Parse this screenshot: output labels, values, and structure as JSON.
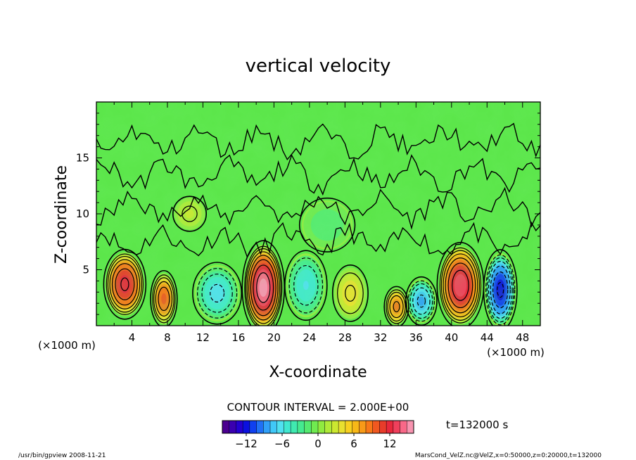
{
  "chart_data": {
    "type": "heatmap",
    "title": "vertical velocity",
    "xlabel": "X-coordinate",
    "ylabel": "Z-coordinate",
    "x_unit": "(×1000 m)",
    "y_unit": "(×1000 m)",
    "xlim": [
      0,
      50
    ],
    "ylim": [
      0,
      20
    ],
    "x_ticks": [
      4,
      8,
      12,
      16,
      20,
      24,
      28,
      32,
      36,
      40,
      44,
      48
    ],
    "y_ticks": [
      5,
      10,
      15
    ],
    "x_tick_labels": [
      "4",
      "8",
      "12",
      "16",
      "20",
      "24",
      "28",
      "32",
      "36",
      "40",
      "44",
      "48"
    ],
    "y_tick_labels": [
      "5",
      "10",
      "15"
    ],
    "contour_interval_text": "CONTOUR INTERVAL = 2.000E+00",
    "contour_interval": 2.0,
    "time_label": "t=132000 s",
    "colorbar": {
      "range": [
        -16,
        16
      ],
      "ticks": [
        -12,
        -6,
        0,
        6,
        12
      ],
      "tick_labels": [
        "−12",
        "−6",
        "0",
        "6",
        "12"
      ],
      "colors": [
        "#4b0090",
        "#3a00b0",
        "#2400d0",
        "#0b10e0",
        "#1040f0",
        "#2070f5",
        "#30a0f8",
        "#40c8f8",
        "#50e0f0",
        "#40e8d0",
        "#40eab0",
        "#45ea90",
        "#55ea70",
        "#70ea50",
        "#90ea40",
        "#b0ea38",
        "#cce830",
        "#e8e030",
        "#f8d020",
        "#f8b818",
        "#f89a18",
        "#f87818",
        "#f05820",
        "#e83c2a",
        "#e8283c",
        "#f0405c",
        "#f86888",
        "#f894b0"
      ]
    },
    "cells": [
      {
        "x": 3.2,
        "z": 3.7,
        "w": 0.8,
        "rx": 1.9,
        "rz": 2.6
      },
      {
        "x": 7.6,
        "z": 2.4,
        "w": 0.62,
        "rx": 1.2,
        "rz": 2.1
      },
      {
        "x": 13.6,
        "z": 2.9,
        "w": -0.42,
        "rx": 2.2,
        "rz": 2.3
      },
      {
        "x": 18.8,
        "z": 3.4,
        "w": 1.0,
        "rx": 1.9,
        "rz": 3.5
      },
      {
        "x": 23.6,
        "z": 3.6,
        "w": -0.38,
        "rx": 1.9,
        "rz": 2.6
      },
      {
        "x": 28.6,
        "z": 2.9,
        "w": 0.28,
        "rx": 1.6,
        "rz": 2.1
      },
      {
        "x": 33.8,
        "z": 1.7,
        "w": 0.55,
        "rx": 1.1,
        "rz": 1.5
      },
      {
        "x": 36.6,
        "z": 2.2,
        "w": -0.55,
        "rx": 1.4,
        "rz": 1.8
      },
      {
        "x": 41.0,
        "z": 3.6,
        "w": 0.88,
        "rx": 2.1,
        "rz": 3.2
      },
      {
        "x": 45.5,
        "z": 3.2,
        "w": -0.8,
        "rx": 1.5,
        "rz": 3.0
      },
      {
        "x": 10.5,
        "z": 10.0,
        "w": 0.16,
        "rx": 1.5,
        "rz": 1.3
      },
      {
        "x": 26.0,
        "z": 9.0,
        "w": -0.12,
        "rx": 2.5,
        "rz": 2.0
      }
    ],
    "amplitude": 15.5
  },
  "footer": {
    "left": "/usr/bin/gpview  2008-11-21",
    "right": "MarsCond_VelZ.nc@VelZ,x=0:50000,z=0:20000,t=132000"
  }
}
